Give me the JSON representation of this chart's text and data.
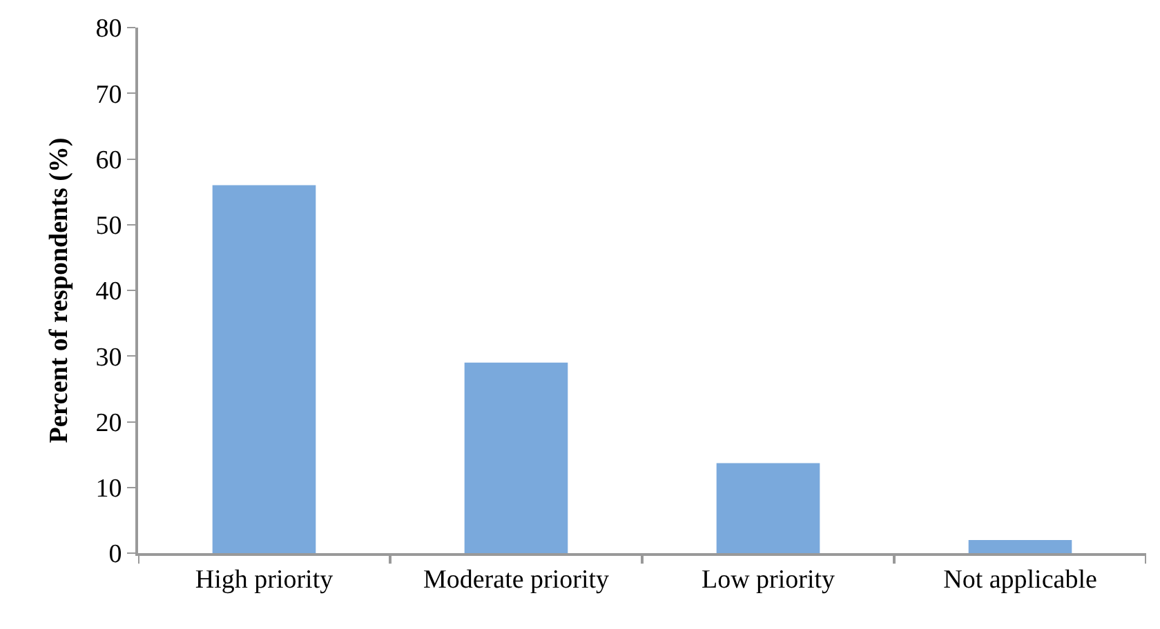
{
  "chart_data": {
    "type": "bar",
    "ylabel": "Percent of respondents (%)",
    "categories": [
      "High priority",
      "Moderate priority",
      "Low priority",
      "Not applicable"
    ],
    "values": [
      56,
      29,
      13.7,
      2
    ],
    "color": "#7aa9dc",
    "ylim": [
      0,
      80
    ],
    "yticks": [
      0,
      10,
      20,
      30,
      40,
      50,
      60,
      70,
      80
    ]
  }
}
